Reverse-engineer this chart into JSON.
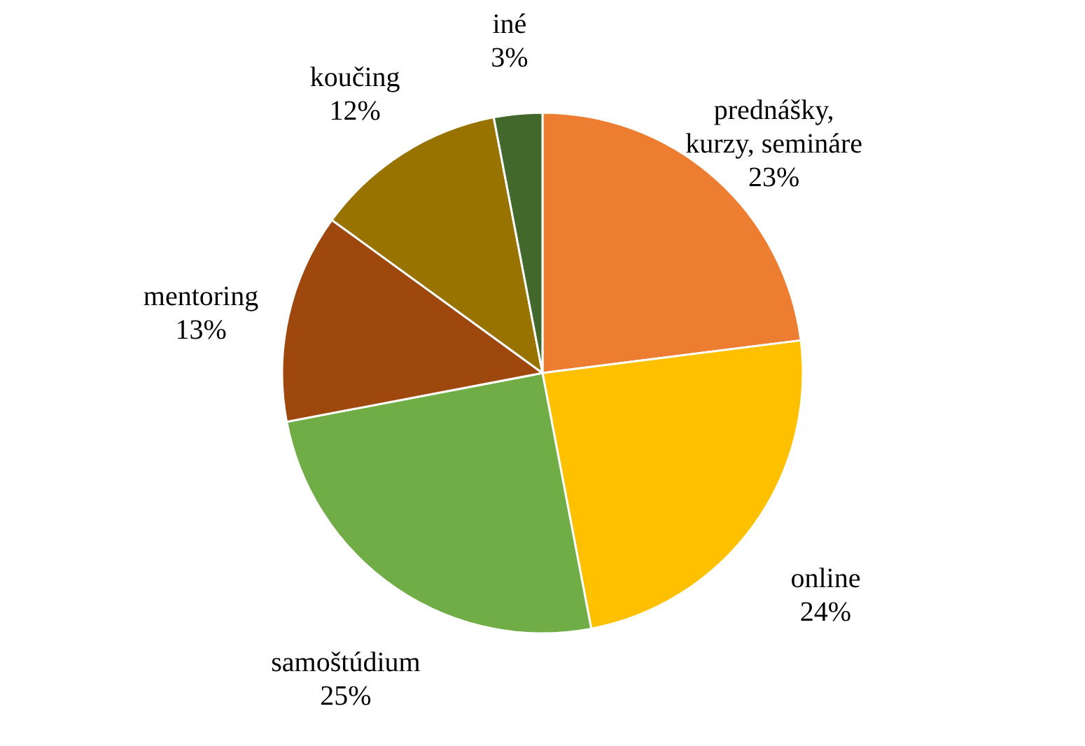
{
  "chart_data": {
    "type": "pie",
    "categories": [
      "prednášky,\nkurzy, semináre",
      "online",
      "samoštúdium",
      "mentoring",
      "koučing",
      "iné"
    ],
    "values": [
      23,
      24,
      25,
      13,
      12,
      3
    ],
    "value_labels": [
      "23%",
      "24%",
      "25%",
      "13%",
      "12%",
      "3%"
    ],
    "colors": [
      "#ed7d31",
      "#ffc000",
      "#70ad47",
      "#9e480e",
      "#997300",
      "#43682b"
    ]
  }
}
